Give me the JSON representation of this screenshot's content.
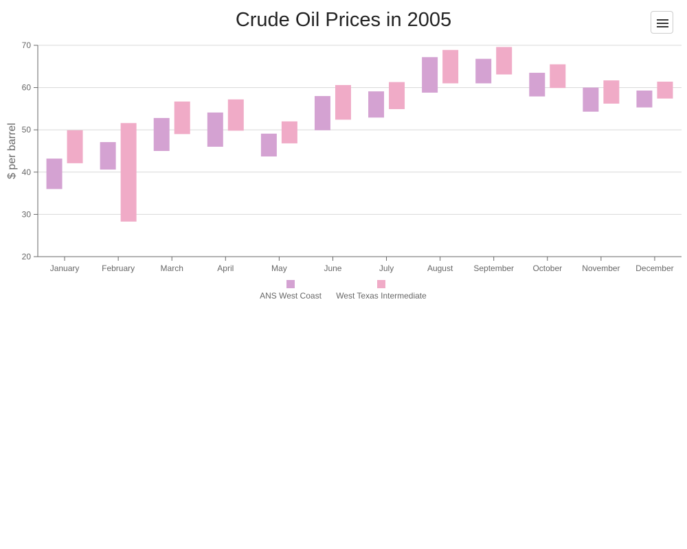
{
  "chart_data": {
    "type": "floating-bar",
    "title": "Crude Oil Prices in 2005",
    "xlabel": "",
    "ylabel": "$ per barrel",
    "ylim": [
      20,
      70
    ],
    "yticks": [
      20,
      30,
      40,
      50,
      60,
      70
    ],
    "grid": true,
    "legend_position": "bottom-center",
    "categories": [
      "January",
      "February",
      "March",
      "April",
      "May",
      "June",
      "July",
      "August",
      "September",
      "October",
      "November",
      "December"
    ],
    "series": [
      {
        "name": "ANS West Coast",
        "color": "#d4a2d2",
        "ranges": [
          [
            36.0,
            43.2
          ],
          [
            40.6,
            47.1
          ],
          [
            45.0,
            52.8
          ],
          [
            46.0,
            54.1
          ],
          [
            43.7,
            49.1
          ],
          [
            49.9,
            58.0
          ],
          [
            52.9,
            59.1
          ],
          [
            58.8,
            67.2
          ],
          [
            61.0,
            66.8
          ],
          [
            57.9,
            63.5
          ],
          [
            54.3,
            60.0
          ],
          [
            55.3,
            59.3
          ]
        ]
      },
      {
        "name": "West Texas Intermediate",
        "color": "#f0abc7",
        "ranges": [
          [
            42.1,
            49.9
          ],
          [
            28.3,
            51.6
          ],
          [
            49.0,
            56.7
          ],
          [
            49.8,
            57.2
          ],
          [
            46.8,
            52.0
          ],
          [
            52.4,
            60.6
          ],
          [
            54.9,
            61.3
          ],
          [
            61.0,
            68.9
          ],
          [
            63.1,
            69.6
          ],
          [
            59.9,
            65.5
          ],
          [
            56.2,
            61.7
          ],
          [
            57.4,
            61.4
          ]
        ]
      }
    ]
  },
  "menu": {
    "icon": "hamburger-menu-icon"
  }
}
